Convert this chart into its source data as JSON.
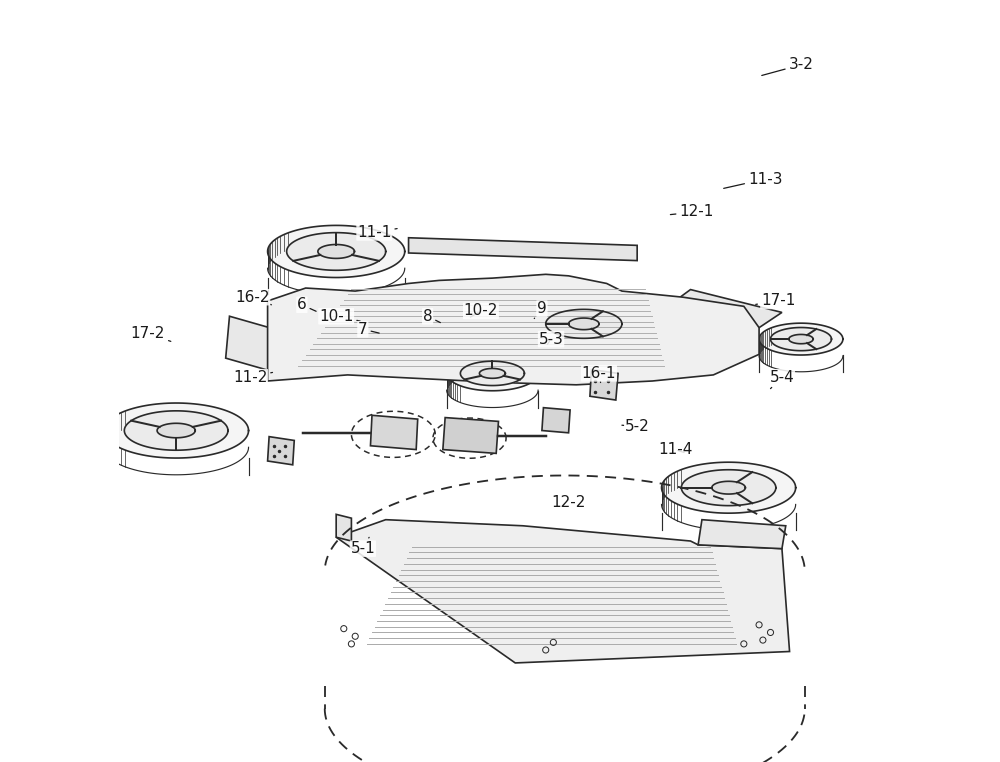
{
  "bg_color": "#ffffff",
  "line_color": "#2a2a2a",
  "line_width": 1.2,
  "label_fontsize": 11,
  "label_color": "#1a1a1a",
  "label_line_data": [
    [
      "3-2",
      [
        0.895,
        0.085
      ],
      [
        0.84,
        0.1
      ]
    ],
    [
      "11-3",
      [
        0.848,
        0.235
      ],
      [
        0.79,
        0.248
      ]
    ],
    [
      "12-1",
      [
        0.758,
        0.278
      ],
      [
        0.72,
        0.282
      ]
    ],
    [
      "11-1",
      [
        0.335,
        0.305
      ],
      [
        0.365,
        0.3
      ]
    ],
    [
      "17-1",
      [
        0.865,
        0.395
      ],
      [
        0.832,
        0.4
      ]
    ],
    [
      "10-1",
      [
        0.285,
        0.415
      ],
      [
        0.32,
        0.422
      ]
    ],
    [
      "8",
      [
        0.405,
        0.415
      ],
      [
        0.425,
        0.425
      ]
    ],
    [
      "10-2",
      [
        0.475,
        0.408
      ],
      [
        0.458,
        0.418
      ]
    ],
    [
      "7",
      [
        0.32,
        0.432
      ],
      [
        0.345,
        0.438
      ]
    ],
    [
      "9",
      [
        0.555,
        0.405
      ],
      [
        0.545,
        0.418
      ]
    ],
    [
      "6",
      [
        0.24,
        0.4
      ],
      [
        0.262,
        0.41
      ]
    ],
    [
      "5-3",
      [
        0.567,
        0.445
      ],
      [
        0.56,
        0.455
      ]
    ],
    [
      "16-2",
      [
        0.175,
        0.39
      ],
      [
        0.2,
        0.4
      ]
    ],
    [
      "17-2",
      [
        0.038,
        0.438
      ],
      [
        0.068,
        0.448
      ]
    ],
    [
      "16-1",
      [
        0.63,
        0.49
      ],
      [
        0.632,
        0.502
      ]
    ],
    [
      "5-2",
      [
        0.68,
        0.56
      ],
      [
        0.66,
        0.558
      ]
    ],
    [
      "11-2",
      [
        0.172,
        0.495
      ],
      [
        0.205,
        0.488
      ]
    ],
    [
      "5-4",
      [
        0.87,
        0.495
      ],
      [
        0.855,
        0.51
      ]
    ],
    [
      "5-1",
      [
        0.32,
        0.72
      ],
      [
        0.33,
        0.702
      ]
    ],
    [
      "11-4",
      [
        0.73,
        0.59
      ],
      [
        0.745,
        0.595
      ]
    ],
    [
      "12-2",
      [
        0.59,
        0.66
      ],
      [
        0.59,
        0.655
      ]
    ]
  ]
}
